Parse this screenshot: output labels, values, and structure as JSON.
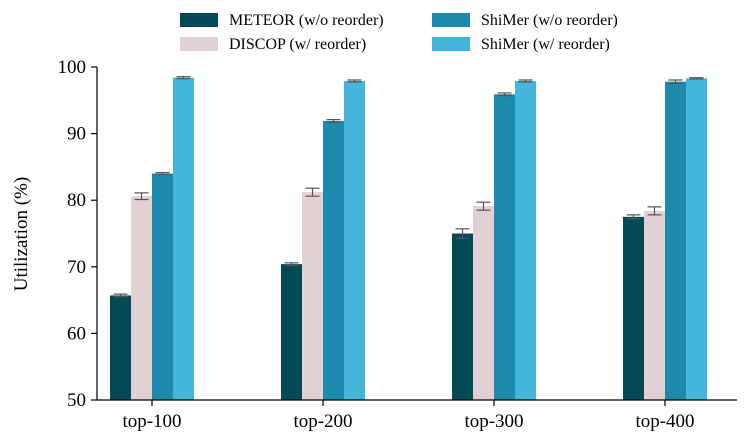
{
  "chart_data": {
    "type": "bar",
    "title": "",
    "xlabel": "",
    "ylabel": "Utilization (%)",
    "ylim": [
      50,
      100
    ],
    "yticks": [
      "50",
      "60",
      "70",
      "80",
      "90",
      "100"
    ],
    "grid": false,
    "legend_position": "top",
    "categories": [
      "top-100",
      "top-200",
      "top-300",
      "top-400"
    ],
    "series": [
      {
        "name": "METEOR (w/o reorder)",
        "color": "#034a56",
        "values": [
          65.7,
          70.4,
          75.0,
          77.5
        ],
        "errors": [
          0.2,
          0.2,
          0.7,
          0.3
        ]
      },
      {
        "name": "DISCOP (w/ reorder)",
        "color": "#e2d1d3",
        "values": [
          80.6,
          81.2,
          79.1,
          78.4
        ],
        "errors": [
          0.5,
          0.6,
          0.6,
          0.6
        ]
      },
      {
        "name": "ShiMer (w/o reorder)",
        "color": "#1b8aac",
        "values": [
          84.0,
          91.9,
          95.9,
          97.8
        ],
        "errors": [
          0.15,
          0.2,
          0.2,
          0.25
        ]
      },
      {
        "name": "ShiMer (w/ reorder)",
        "color": "#45b6da",
        "values": [
          98.4,
          97.9,
          97.9,
          98.3
        ],
        "errors": [
          0.15,
          0.15,
          0.15,
          0.1
        ]
      }
    ]
  }
}
